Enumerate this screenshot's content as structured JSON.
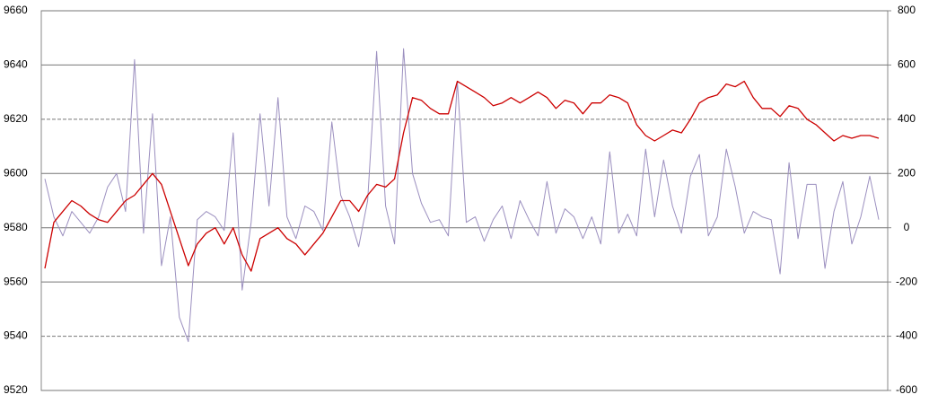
{
  "chart_data": {
    "type": "line",
    "categories": [
      null,
      null,
      null,
      null,
      null,
      null,
      null,
      null,
      null,
      null,
      null,
      null,
      null,
      null,
      null,
      null,
      null,
      null,
      null,
      null,
      null,
      null,
      null,
      null,
      null,
      null,
      null,
      null,
      null,
      null,
      null,
      null,
      null,
      null,
      null,
      null,
      null,
      null,
      null,
      null,
      null,
      null,
      null,
      null,
      null,
      null,
      null,
      null,
      null,
      null,
      null,
      null,
      null,
      null,
      null,
      null,
      null,
      null,
      null,
      null,
      null,
      null,
      null,
      null,
      null,
      null,
      null,
      null,
      null,
      null,
      null,
      null,
      null,
      null,
      null,
      null,
      null,
      null,
      null,
      null,
      null,
      null,
      null,
      null,
      null,
      null,
      null,
      null,
      null,
      null,
      null,
      null,
      null,
      null
    ],
    "series": [
      {
        "color": "#9b8fbf",
        "axis": "y2",
        "values": [
          180,
          40,
          -30,
          60,
          20,
          -20,
          40,
          150,
          200,
          60,
          620,
          -20,
          420,
          -140,
          40,
          -330,
          -420,
          30,
          60,
          40,
          -10,
          350,
          -230,
          20,
          420,
          80,
          480,
          40,
          -40,
          80,
          60,
          -10,
          390,
          120,
          40,
          -70,
          100,
          650,
          80,
          -60,
          660,
          200,
          90,
          20,
          30,
          -30,
          540,
          20,
          40,
          -50,
          30,
          80,
          -40,
          100,
          30,
          -30,
          170,
          -20,
          70,
          40,
          -40,
          40,
          -60,
          280,
          -20,
          50,
          -30,
          290,
          40,
          250,
          80,
          -20,
          190,
          270,
          -30,
          40,
          290,
          150,
          -20,
          60,
          40,
          30,
          -170,
          240,
          -40,
          160,
          160,
          -150,
          60,
          170,
          -60,
          40,
          190,
          30
        ]
      },
      {
        "color": "#cc0000",
        "values": [
          9565,
          9582,
          9586,
          9590,
          9588,
          9585,
          9583,
          9582,
          9586,
          9590,
          9592,
          9596,
          9600,
          9596,
          9586,
          9576,
          9566,
          9574,
          9578,
          9580,
          9574,
          9580,
          9570,
          9564,
          9576,
          9578,
          9580,
          9576,
          9574,
          9570,
          9574,
          9578,
          9584,
          9590,
          9590,
          9586,
          9592,
          9596,
          9595,
          9598,
          9615,
          9628,
          9627,
          9624,
          9622,
          9622,
          9634,
          9632,
          9630,
          9628,
          9625,
          9626,
          9628,
          9626,
          9628,
          9630,
          9628,
          9624,
          9627,
          9626,
          9622,
          9626,
          9626,
          9629,
          9628,
          9626,
          9618,
          9614,
          9612,
          9614,
          9616,
          9615,
          9620,
          9626,
          9628,
          9629,
          9633,
          9632,
          9634,
          9628,
          9624,
          9624,
          9621,
          9625,
          9624,
          9620,
          9618,
          9615,
          9612,
          9614,
          9613,
          9614,
          9614,
          9613
        ]
      }
    ],
    "ylim": [
      9520,
      9660
    ],
    "yticks": [
      9520,
      9540,
      9560,
      9580,
      9600,
      9620,
      9640,
      9660
    ],
    "y2lim": [
      -600,
      800
    ],
    "y2ticks": [
      -600,
      -400,
      -200,
      0,
      200,
      400,
      600,
      800
    ],
    "grid": true,
    "dashed_yticks": [
      9540,
      9620
    ]
  }
}
